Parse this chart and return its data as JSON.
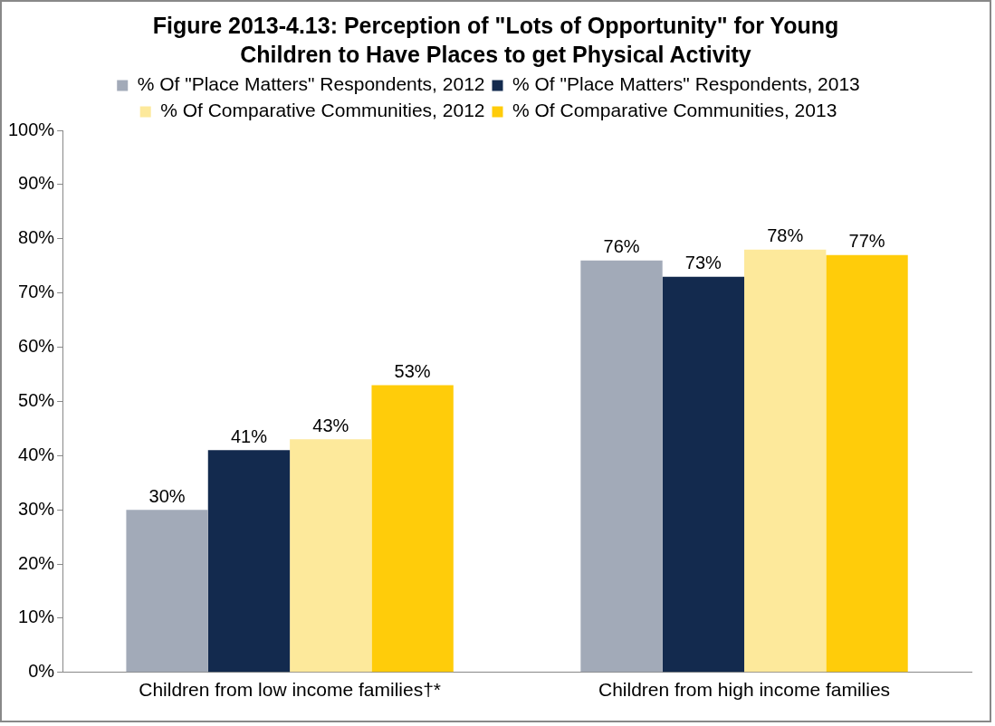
{
  "chart_data": {
    "type": "bar",
    "title": "Figure 2013-4.13:  Perception of \"Lots of Opportunity\" for Young Children to Have Places to get Physical Activity",
    "categories": [
      "Children from low income families†*",
      "Children from high income families"
    ],
    "series": [
      {
        "name": "% Of \"Place Matters\" Respondents, 2012",
        "color": "#a2aab8",
        "values": [
          30,
          76
        ],
        "value_labels": [
          "30%",
          "76%"
        ]
      },
      {
        "name": "% Of \"Place Matters\" Respondents, 2013",
        "color": "#132a4e",
        "values": [
          41,
          73
        ],
        "value_labels": [
          "41%",
          "73%"
        ]
      },
      {
        "name": "% Of Comparative Communities, 2012",
        "color": "#fde99b",
        "values": [
          43,
          78
        ],
        "value_labels": [
          "43%",
          "78%"
        ]
      },
      {
        "name": "% Of Comparative Communities, 2013",
        "color": "#ffcc0a",
        "values": [
          53,
          77
        ],
        "value_labels": [
          "53%",
          "77%"
        ]
      }
    ],
    "ylim": [
      0,
      100
    ],
    "yticks": [
      {
        "value": 0,
        "label": "0%"
      },
      {
        "value": 10,
        "label": "10%"
      },
      {
        "value": 20,
        "label": "20%"
      },
      {
        "value": 30,
        "label": "30%"
      },
      {
        "value": 40,
        "label": "40%"
      },
      {
        "value": 50,
        "label": "50%"
      },
      {
        "value": 60,
        "label": "60%"
      },
      {
        "value": 70,
        "label": "70%"
      },
      {
        "value": 80,
        "label": "80%"
      },
      {
        "value": 90,
        "label": "90%"
      },
      {
        "value": 100,
        "label": "100%"
      }
    ],
    "grid": false,
    "legend": "top"
  }
}
